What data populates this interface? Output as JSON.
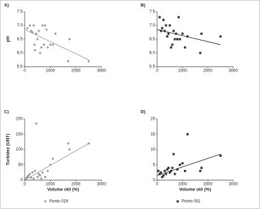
{
  "chart_data": [
    {
      "type": "scatter",
      "panel_label": "A)",
      "ylabel": "pH",
      "xlim": [
        0,
        3000
      ],
      "xticks": [
        0,
        1000,
        2000,
        3000
      ],
      "ylim": [
        5.5,
        7.5
      ],
      "yticks": [
        5.5,
        {
          "value": 6,
          "label": "6.0"
        },
        6.5,
        {
          "value": 7,
          "label": "7.0"
        },
        7.5
      ],
      "series": [
        {
          "color": "#9a9a9a",
          "marker": "diamond",
          "x": [
            100,
            200,
            250,
            300,
            350,
            380,
            400,
            450,
            500,
            550,
            600,
            650,
            700,
            750,
            800,
            850,
            900,
            1000,
            1100,
            1200,
            1700,
            1750,
            2500
          ],
          "values": [
            6.9,
            7.0,
            6.8,
            6.75,
            7.0,
            6.3,
            6.1,
            6.7,
            6.5,
            6.8,
            6.0,
            6.2,
            7.0,
            6.3,
            7.0,
            6.85,
            6.2,
            6.3,
            6.3,
            6.7,
            5.7,
            6.5,
            5.7
          ]
        }
      ],
      "trendline": {
        "x": [
          0,
          2500
        ],
        "y": [
          6.85,
          5.75
        ]
      }
    },
    {
      "type": "scatter",
      "panel_label": "B)",
      "xlim": [
        0,
        3000
      ],
      "xticks": [
        0,
        1000,
        2000,
        3000
      ],
      "ylim": [
        5.5,
        7.5
      ],
      "yticks": [
        5.5,
        {
          "value": 6,
          "label": "6.0"
        },
        6.5,
        {
          "value": 7,
          "label": "7.0"
        },
        7.5
      ],
      "series": [
        {
          "color": "#333333",
          "marker": "square",
          "x": [
            100,
            150,
            200,
            250,
            300,
            350,
            400,
            450,
            500,
            550,
            600,
            650,
            700,
            750,
            800,
            850,
            900,
            1000,
            1100,
            1200,
            1700,
            1750,
            2500
          ],
          "values": [
            7.3,
            6.8,
            6.9,
            7.2,
            6.8,
            7.0,
            6.6,
            6.7,
            7.0,
            6.2,
            6.3,
            6.8,
            6.5,
            6.7,
            6.5,
            7.3,
            6.5,
            6.7,
            6.2,
            6.6,
            6.0,
            6.7,
            6.6
          ]
        }
      ],
      "trendline": {
        "x": [
          0,
          2500
        ],
        "y": [
          6.85,
          6.3
        ]
      }
    },
    {
      "type": "scatter",
      "panel_label": "C)",
      "ylabel": "Turbidez (UNT)",
      "xlabel": "Volume útil (%)",
      "xlim": [
        0,
        3000
      ],
      "xticks": [
        0,
        1000,
        2000,
        3000
      ],
      "ylim": [
        0,
        200
      ],
      "yticks": [
        0,
        50,
        100,
        150,
        200
      ],
      "series": [
        {
          "name": "Ponto 019",
          "color": "#9a9a9a",
          "marker": "diamond",
          "x": [
            50,
            100,
            150,
            200,
            250,
            300,
            350,
            400,
            450,
            500,
            550,
            600,
            650,
            700,
            800,
            900,
            1000,
            1100,
            1700,
            1750,
            2500
          ],
          "values": [
            5,
            10,
            15,
            20,
            8,
            25,
            5,
            30,
            185,
            10,
            20,
            15,
            5,
            25,
            10,
            30,
            50,
            70,
            120,
            100,
            120
          ]
        }
      ],
      "trendline": {
        "x": [
          0,
          2500
        ],
        "y": [
          0,
          120
        ]
      }
    },
    {
      "type": "scatter",
      "panel_label": "D)",
      "xlabel": "Volume útil (%)",
      "xlim": [
        0,
        3000
      ],
      "xticks": [
        0,
        1000,
        2000,
        3000
      ],
      "ylim": [
        0,
        20
      ],
      "yticks": [
        0,
        5,
        10,
        15,
        20
      ],
      "series": [
        {
          "name": "Ponto 051",
          "color": "#333333",
          "marker": "square",
          "x": [
            50,
            100,
            150,
            200,
            250,
            300,
            350,
            400,
            450,
            500,
            550,
            600,
            650,
            700,
            800,
            900,
            1000,
            1100,
            1200,
            1700,
            1750,
            2500
          ],
          "values": [
            3,
            2,
            2.5,
            1,
            1.5,
            3,
            2,
            3.5,
            4,
            2.5,
            3,
            4,
            8.5,
            2,
            3.5,
            5,
            5.5,
            3,
            15,
            3,
            4,
            8
          ]
        }
      ],
      "trendline": {
        "x": [
          0,
          2500
        ],
        "y": [
          1.5,
          8.5
        ]
      }
    }
  ]
}
